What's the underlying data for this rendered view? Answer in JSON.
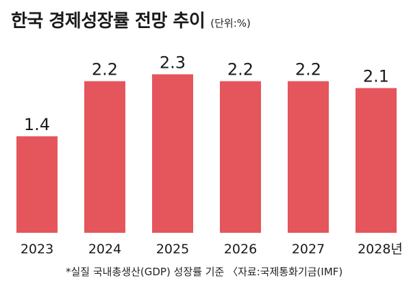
{
  "chart_data": {
    "type": "bar",
    "title": "한국 경제성장률 전망 추이",
    "unit": "(단위:%)",
    "categories": [
      "2023",
      "2024",
      "2025",
      "2026",
      "2027",
      "2028년"
    ],
    "values": [
      1.4,
      2.2,
      2.3,
      2.2,
      2.2,
      2.1
    ],
    "value_labels": [
      "1.4",
      "2.2",
      "2.3",
      "2.2",
      "2.2",
      "2.1"
    ],
    "xlabel": "",
    "ylabel": "",
    "ylim": [
      0,
      3.05
    ],
    "grid": false,
    "legend": "none",
    "bar_color": "#e5555c"
  },
  "footnote": "*실질 국내총생산(GDP) 성장률 기준 〈자료:국제통화기금(IMF)"
}
